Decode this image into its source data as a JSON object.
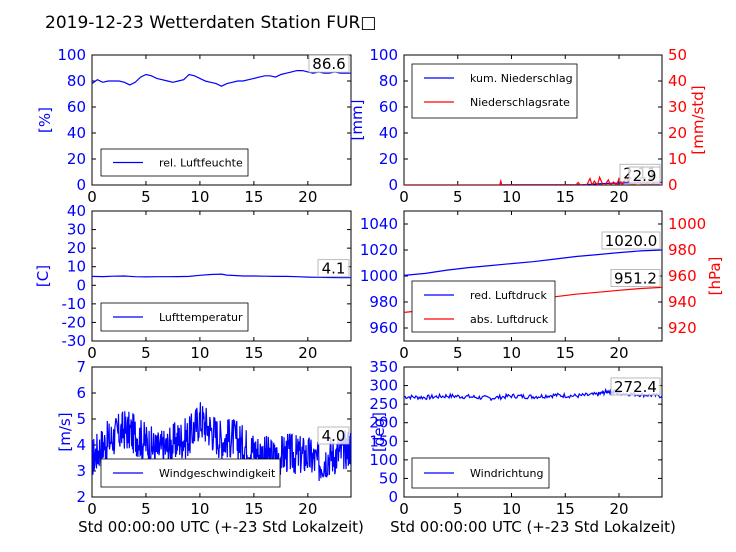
{
  "title": "2019-12-23 Wetterdaten Station FUR□",
  "xlabel": "Std 00:00:00 UTC (+-23 Std Lokalzeit)",
  "chart_data": [
    {
      "id": "humidity",
      "type": "line",
      "ylabel": "[%]",
      "xlim": [
        0,
        24
      ],
      "ylim": [
        0,
        100
      ],
      "xticks": [
        0,
        5,
        10,
        15,
        20
      ],
      "yticks": [
        0,
        20,
        40,
        60,
        80,
        100
      ],
      "legend": "lower-left",
      "last_value": "86.6",
      "series": [
        {
          "name": "rel. Luftfeuchte",
          "color": "#0000ff",
          "x": [
            0,
            0.5,
            1,
            1.5,
            2,
            2.5,
            3,
            3.5,
            4,
            4.5,
            5,
            5.5,
            6,
            6.5,
            7,
            7.5,
            8,
            8.5,
            9,
            9.5,
            10,
            10.5,
            11,
            11.5,
            12,
            12.5,
            13,
            13.5,
            14,
            14.5,
            15,
            15.5,
            16,
            16.5,
            17,
            17.5,
            18,
            18.5,
            19,
            19.5,
            20,
            20.5,
            21,
            21.5,
            22,
            22.5,
            23,
            23.5,
            24
          ],
          "y": [
            78,
            81,
            79,
            80,
            80,
            80,
            79,
            77,
            79,
            83,
            85,
            84,
            82,
            81,
            80,
            79,
            80,
            81,
            85,
            84,
            82,
            80,
            79,
            78,
            76,
            78,
            79,
            80,
            80,
            81,
            82,
            83,
            84,
            84,
            83,
            85,
            86,
            87,
            88,
            88,
            87,
            86,
            87,
            86,
            86,
            87,
            86,
            86,
            86
          ]
        }
      ]
    },
    {
      "id": "precipitation",
      "type": "line",
      "ylabel": "[mm]",
      "ylabel_right": "[mm/std]",
      "xlim": [
        0,
        24
      ],
      "ylim": [
        0,
        100
      ],
      "ylim_right": [
        0,
        50
      ],
      "xticks": [
        0,
        5,
        10,
        15,
        20
      ],
      "yticks": [
        0,
        20,
        40,
        60,
        80,
        100
      ],
      "yticks_right": [
        0,
        10,
        20,
        30,
        40,
        50
      ],
      "legend": "top-left",
      "last_value": "2.11",
      "last_value_2": "2.9",
      "series": [
        {
          "name": "kum. Niederschlag",
          "color": "#0000ff",
          "axis": "left",
          "x": [
            0,
            8.9,
            9,
            16.5,
            17.5,
            18,
            19,
            20,
            21,
            22,
            23,
            24
          ],
          "y": [
            0,
            0,
            0.2,
            0.2,
            0.6,
            0.9,
            1.2,
            1.5,
            1.8,
            2.0,
            2.1,
            2.11
          ]
        },
        {
          "name": "Niederschlagsrate",
          "color": "#ff0000",
          "axis": "right",
          "x": [
            0,
            8.9,
            9,
            9.1,
            16.0,
            16.2,
            16.4,
            17,
            17.3,
            17.5,
            17.7,
            18,
            18.2,
            18.5,
            18.7,
            19,
            19.2,
            19.5,
            19.8,
            20,
            20.3,
            20.7,
            21,
            21.3,
            21.6,
            22,
            22.3,
            22.6,
            23,
            23.2,
            23.5,
            23.8,
            24
          ],
          "y": [
            0,
            0,
            1.5,
            0,
            0,
            1,
            0,
            0,
            2.5,
            0,
            1.5,
            0,
            3,
            0,
            0,
            2,
            0,
            1.2,
            0,
            2.5,
            0,
            3,
            0,
            1,
            0,
            0,
            2,
            0,
            3,
            0,
            2.9,
            0,
            0
          ]
        }
      ]
    },
    {
      "id": "temperature",
      "type": "line",
      "ylabel": "[C]",
      "xlim": [
        0,
        24
      ],
      "ylim": [
        -30,
        40
      ],
      "xticks": [
        0,
        5,
        10,
        15,
        20
      ],
      "yticks": [
        -30,
        -20,
        -10,
        0,
        10,
        20,
        30,
        40
      ],
      "legend": "lower-left",
      "last_value": "4.1",
      "series": [
        {
          "name": "Lufttemperatur",
          "color": "#0000ff",
          "x": [
            0,
            1,
            2,
            3,
            4,
            5,
            6,
            7,
            8,
            9,
            10,
            11,
            12,
            12.5,
            13,
            14,
            15,
            16,
            17,
            18,
            19,
            20,
            21,
            22,
            23,
            24
          ],
          "y": [
            4.8,
            4.7,
            4.9,
            5.0,
            4.6,
            4.5,
            4.6,
            4.6,
            4.7,
            4.8,
            5.4,
            5.8,
            6.0,
            5.5,
            5.3,
            5.0,
            5.0,
            4.9,
            4.8,
            4.8,
            4.6,
            4.4,
            4.3,
            4.2,
            4.1,
            4.1
          ]
        }
      ]
    },
    {
      "id": "pressure",
      "type": "line",
      "ylabel_right": "[hPa]",
      "xlim": [
        0,
        24
      ],
      "ylim": [
        950,
        1050
      ],
      "ylim_right": [
        910,
        1010
      ],
      "xticks": [
        0,
        5,
        10,
        15,
        20
      ],
      "yticks": [
        960,
        980,
        1000,
        1020,
        1040
      ],
      "yticks_right": [
        920,
        940,
        960,
        980,
        1000
      ],
      "legend": "lower-left",
      "last_value": "1020.0",
      "last_value_2": "951.2",
      "series": [
        {
          "name": "red. Luftdruck",
          "color": "#0000ff",
          "axis": "left",
          "x": [
            0,
            2,
            4,
            6,
            8,
            10,
            12,
            14,
            16,
            18,
            20,
            22,
            24
          ],
          "y": [
            1000.5,
            1002,
            1004.5,
            1006.5,
            1008,
            1009.5,
            1011,
            1013,
            1015,
            1016.5,
            1018,
            1019.3,
            1020
          ]
        },
        {
          "name": "abs. Luftdruck",
          "color": "#ff0000",
          "axis": "right",
          "x": [
            0,
            2,
            4,
            6,
            8,
            10,
            12,
            14,
            16,
            18,
            20,
            22,
            24
          ],
          "y": [
            932,
            933.5,
            935.5,
            937.5,
            939,
            940.5,
            942,
            944,
            946,
            947.5,
            949,
            950.4,
            951.2
          ]
        }
      ]
    },
    {
      "id": "windspeed",
      "type": "line",
      "ylabel": "[m/s]",
      "xlim": [
        0,
        24
      ],
      "ylim": [
        2,
        7
      ],
      "xticks": [
        0,
        5,
        10,
        15,
        20
      ],
      "yticks": [
        2,
        3,
        4,
        5,
        6,
        7
      ],
      "legend": "lower-left",
      "last_value": "4.0",
      "series": [
        {
          "name": "Windgeschwindigkeit",
          "color": "#0000ff",
          "x": [
            0,
            1,
            2,
            3,
            4,
            5,
            6,
            7,
            8,
            9,
            10,
            11,
            12,
            13,
            14,
            15,
            16,
            17,
            18,
            19,
            20,
            21,
            22,
            23,
            24
          ],
          "y": [
            3.5,
            4.0,
            4.3,
            4.6,
            4.4,
            4.1,
            3.8,
            3.9,
            4.2,
            4.3,
            5.0,
            4.6,
            4.2,
            4.3,
            4.0,
            3.8,
            3.6,
            3.5,
            3.7,
            3.6,
            3.6,
            3.3,
            3.6,
            3.7,
            4.0
          ]
        }
      ]
    },
    {
      "id": "winddirection",
      "type": "line",
      "ylabel": "[deg]",
      "xlim": [
        0,
        24
      ],
      "ylim": [
        0,
        350
      ],
      "xticks": [
        0,
        5,
        10,
        15,
        20
      ],
      "yticks": [
        0,
        50,
        100,
        150,
        200,
        250,
        300,
        350
      ],
      "legend": "lower-left",
      "last_value": "272.4",
      "series": [
        {
          "name": "Windrichtung",
          "color": "#0000ff",
          "x": [
            0,
            2,
            4,
            6,
            8,
            10,
            12,
            14,
            16,
            18,
            19,
            20,
            22,
            24
          ],
          "y": [
            270,
            268,
            272,
            270,
            266,
            272,
            270,
            274,
            272,
            276,
            285,
            280,
            276,
            272
          ]
        }
      ]
    }
  ]
}
